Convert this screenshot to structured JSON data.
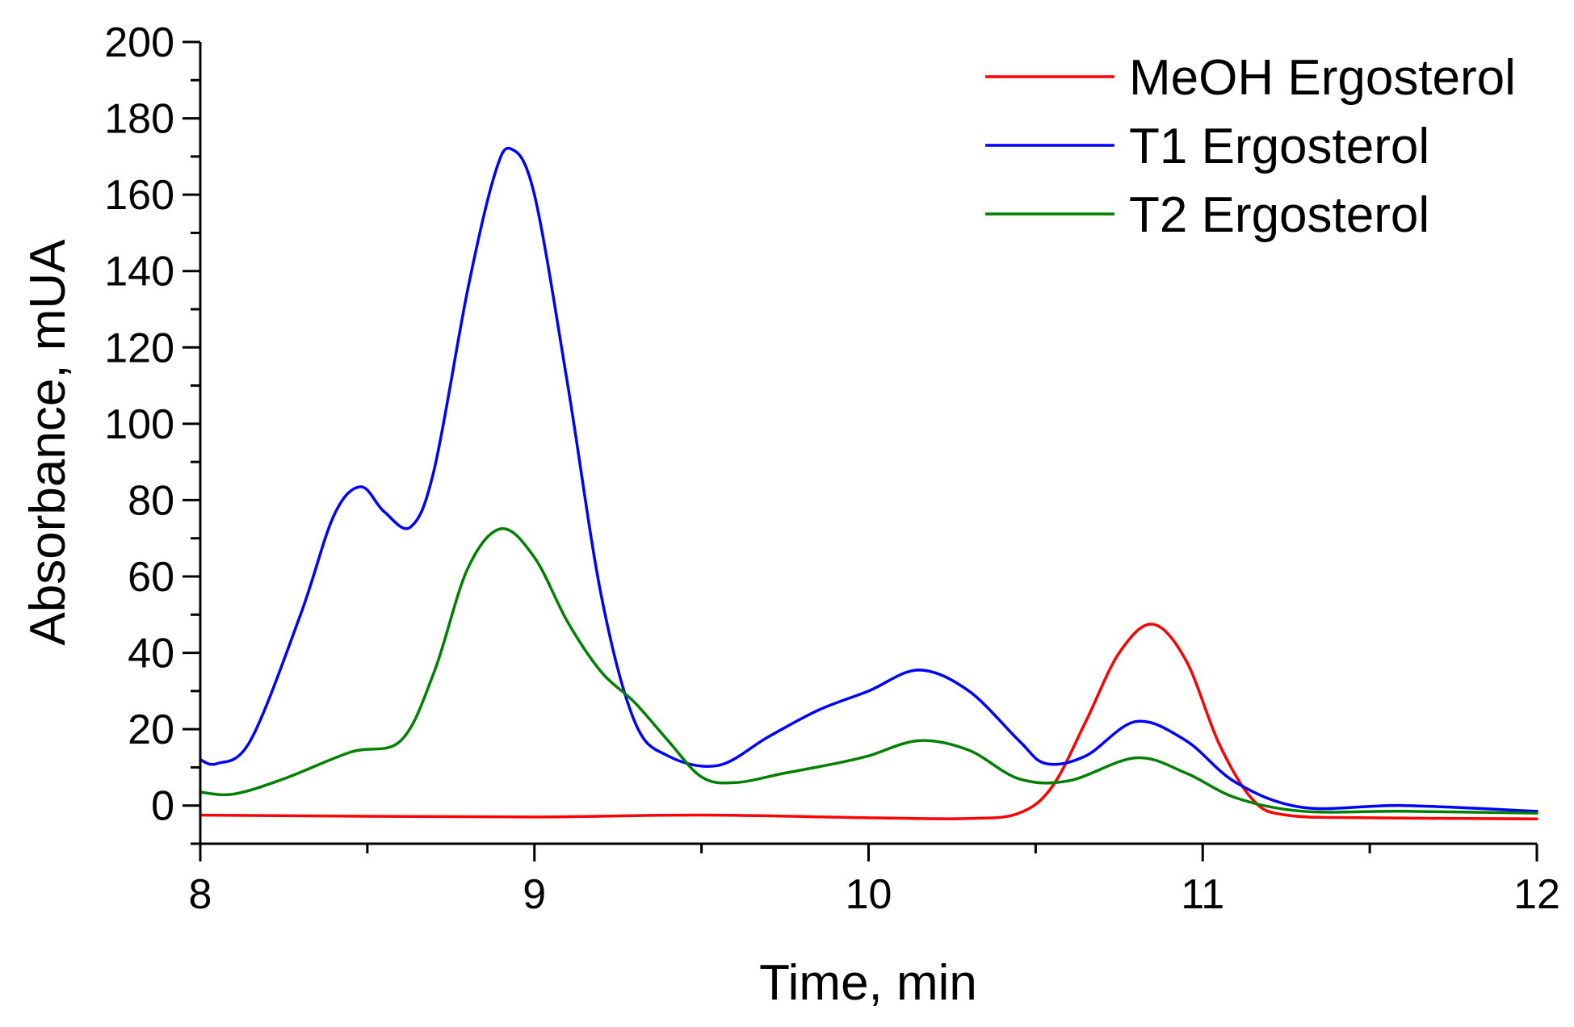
{
  "chart_data": {
    "type": "line",
    "title": "",
    "xlabel": "Time, min",
    "ylabel": "Absorbance, mUA",
    "xlim": [
      8,
      12
    ],
    "ylim": [
      -10,
      200
    ],
    "x_ticks": [
      8,
      9,
      10,
      11,
      12
    ],
    "x_minor_ticks": [
      8.5,
      9.5,
      10.5,
      11.5
    ],
    "y_ticks": [
      0,
      20,
      40,
      60,
      80,
      100,
      120,
      140,
      160,
      180,
      200
    ],
    "y_minor_ticks": [
      -10,
      10,
      30,
      50,
      70,
      90,
      110,
      130,
      150,
      170,
      190
    ],
    "grid": false,
    "legend_position": "top-right",
    "series": [
      {
        "name": "MeOH Ergosterol",
        "color": "#ff0000",
        "x": [
          8.0,
          8.5,
          9.0,
          9.5,
          10.0,
          10.3,
          10.45,
          10.55,
          10.65,
          10.75,
          10.85,
          10.95,
          11.05,
          11.15,
          11.25,
          11.5,
          12.0
        ],
        "y": [
          -2.5,
          -2.8,
          -3.0,
          -2.5,
          -3.2,
          -3.4,
          -2.0,
          5.0,
          22.0,
          40.0,
          47.5,
          38.0,
          16.0,
          1.5,
          -2.5,
          -3.2,
          -3.5
        ]
      },
      {
        "name": "T1 Ergosterol",
        "color": "#0000ff",
        "x": [
          8.0,
          8.05,
          8.15,
          8.3,
          8.4,
          8.48,
          8.55,
          8.63,
          8.7,
          8.8,
          8.88,
          8.93,
          9.0,
          9.1,
          9.2,
          9.3,
          9.4,
          9.55,
          9.7,
          9.85,
          10.0,
          10.15,
          10.3,
          10.45,
          10.53,
          10.65,
          10.8,
          10.95,
          11.1,
          11.3,
          11.6,
          12.0
        ],
        "y": [
          12.0,
          11.0,
          17.0,
          50.0,
          76.0,
          83.5,
          77.0,
          73.0,
          88.0,
          135.0,
          165.0,
          172.0,
          160.0,
          110.0,
          55.0,
          22.0,
          13.0,
          10.5,
          18.0,
          25.0,
          30.0,
          35.5,
          30.0,
          17.0,
          11.0,
          13.0,
          22.0,
          17.0,
          6.0,
          -0.5,
          0.0,
          -1.5
        ]
      },
      {
        "name": "T2 Ergosterol",
        "color": "#008000",
        "x": [
          8.0,
          8.1,
          8.25,
          8.45,
          8.6,
          8.7,
          8.8,
          8.9,
          9.0,
          9.1,
          9.2,
          9.3,
          9.4,
          9.5,
          9.6,
          9.75,
          9.9,
          10.0,
          10.15,
          10.3,
          10.45,
          10.6,
          10.8,
          10.95,
          11.1,
          11.3,
          11.6,
          12.0
        ],
        "y": [
          3.5,
          3.0,
          7.0,
          14.0,
          17.0,
          35.0,
          62.0,
          72.5,
          65.0,
          48.0,
          35.0,
          27.0,
          17.0,
          7.5,
          6.0,
          8.5,
          11.0,
          13.0,
          17.0,
          14.5,
          7.0,
          6.5,
          12.5,
          8.5,
          2.0,
          -1.5,
          -1.5,
          -2.0
        ]
      }
    ]
  }
}
